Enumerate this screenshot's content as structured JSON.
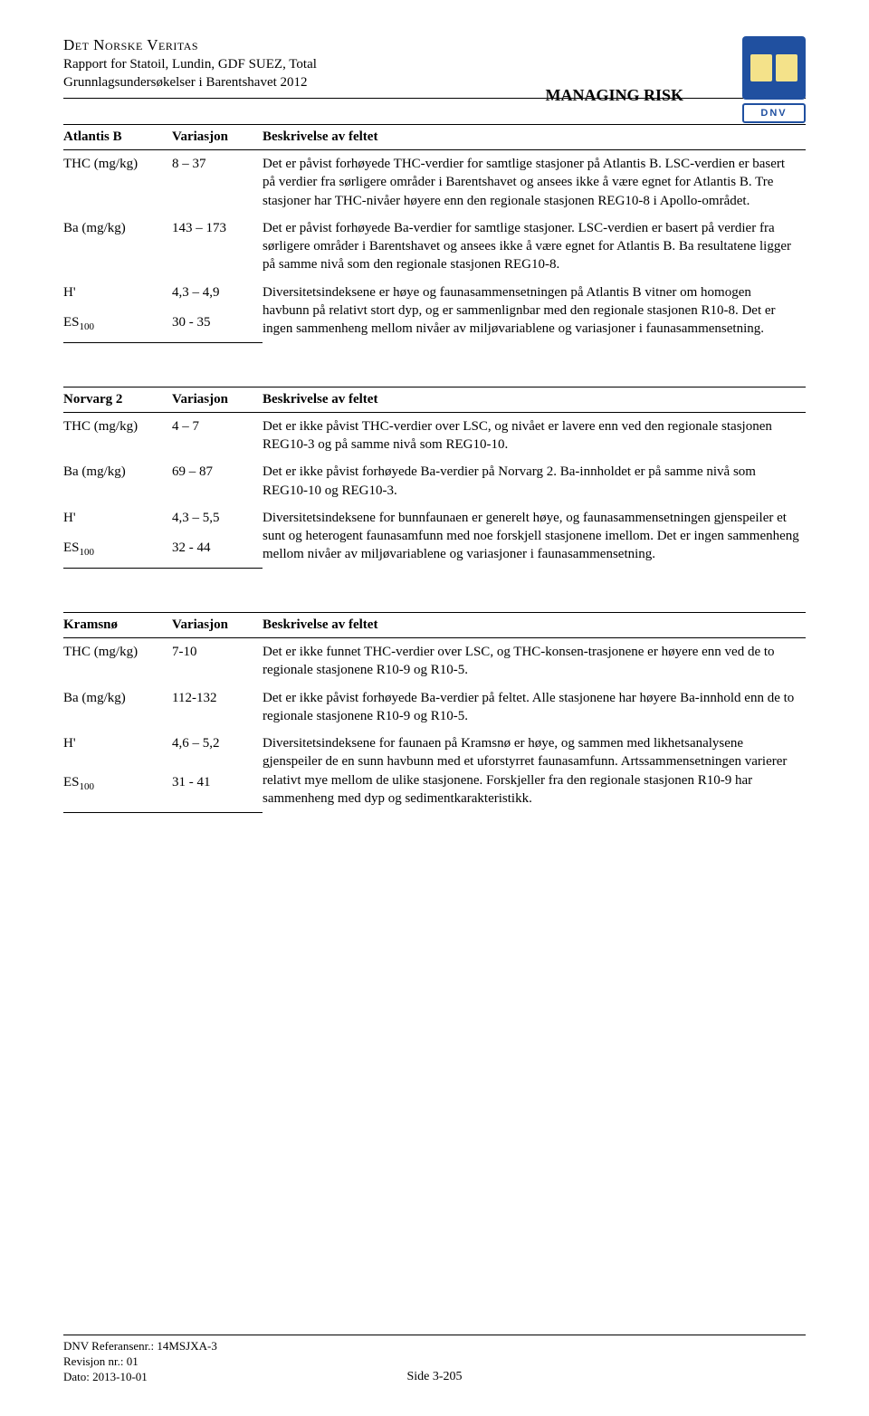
{
  "header": {
    "company": "Det Norske Veritas",
    "report_line": "Rapport for Statoil, Lundin, GDF SUEZ, Total",
    "sub_line": "Grunnlagsundersøkelser i Barentshavet 2012",
    "managing_risk": "MANAGING RISK",
    "dnv_label": "DNV"
  },
  "tables": [
    {
      "title": "Atlantis B",
      "col2": "Variasjon",
      "col3": "Beskrivelse av feltet",
      "rows": [
        {
          "label": "THC (mg/kg)",
          "var": "8 – 37",
          "desc": "Det er påvist forhøyede THC-verdier for samtlige stasjoner på Atlantis B. LSC-verdien er basert på verdier fra sørligere områder i Barentshavet og ansees ikke å være egnet for Atlantis B. Tre stasjoner har THC-nivåer høyere enn den regionale stasjonen REG10-8 i Apollo-området."
        },
        {
          "label": "Ba (mg/kg)",
          "var": "143 – 173",
          "desc": "Det er påvist forhøyede Ba-verdier for samtlige stasjoner. LSC-verdien er basert på verdier fra sørligere områder i Barentshavet og ansees ikke å være egnet for Atlantis B. Ba resultatene ligger på samme nivå som den regionale stasjonen REG10-8."
        },
        {
          "label": "H'",
          "var": "4,3 – 4,9",
          "desc": "Diversitetsindeksene er høye og faunasammensetningen på Atlantis B vitner om homogen havbunn på relativt stort dyp, og er sammenlignbar med den regionale stasjonen R10-8. Det er ingen sammenheng mellom nivåer av miljøvariablene og variasjoner i faunasammensetning.",
          "rowspan": 2
        },
        {
          "label": "ES100",
          "var": "30 - 35",
          "sub": true
        }
      ]
    },
    {
      "title": "Norvarg 2",
      "col2": "Variasjon",
      "col3": "Beskrivelse av feltet",
      "rows": [
        {
          "label": "THC (mg/kg)",
          "var": "4 – 7",
          "desc": "Det er ikke påvist THC-verdier over LSC, og nivået er lavere enn ved den regionale stasjonen REG10-3 og på samme nivå som REG10-10."
        },
        {
          "label": "Ba (mg/kg)",
          "var": "69 – 87",
          "desc": "Det er ikke påvist forhøyede Ba-verdier på Norvarg 2. Ba-innholdet er på samme nivå som REG10-10 og REG10-3."
        },
        {
          "label": "H'",
          "var": "4,3 – 5,5",
          "desc": "Diversitetsindeksene for bunnfaunaen er generelt høye, og faunasammensetningen gjenspeiler et sunt og heterogent faunasamfunn med noe forskjell stasjonene imellom. Det er ingen sammenheng mellom nivåer av miljøvariablene og variasjoner i faunasammensetning.",
          "rowspan": 2
        },
        {
          "label": "ES100",
          "var": "32 - 44",
          "sub": true
        }
      ]
    },
    {
      "title": "Kramsnø",
      "col2": "Variasjon",
      "col3": "Beskrivelse av feltet",
      "rows": [
        {
          "label": "THC (mg/kg)",
          "var": "7-10",
          "desc": "Det er ikke funnet THC-verdier over LSC, og THC-konsen-trasjonene er høyere enn ved de to regionale stasjonene R10-9 og R10-5."
        },
        {
          "label": "Ba (mg/kg)",
          "var": "112-132",
          "desc": "Det er ikke påvist forhøyede Ba-verdier på feltet. Alle stasjonene har høyere Ba-innhold enn de to regionale stasjonene R10-9 og R10-5."
        },
        {
          "label": "H'",
          "var": "4,6 – 5,2",
          "desc": "Diversitetsindeksene for faunaen på Kramsnø er høye, og sammen med likhetsanalysene gjenspeiler de en sunn havbunn med et uforstyrret faunasamfunn. Artssammensetningen varierer relativt mye mellom de ulike stasjonene. Forskjeller fra den regionale stasjonen R10-9 har sammenheng med dyp og sedimentkarakteristikk.",
          "rowspan": 2
        },
        {
          "label": "ES100",
          "var": "31 - 41",
          "sub": true
        }
      ]
    }
  ],
  "footer": {
    "ref": "DNV Referansenr.: 14MSJXA-3",
    "rev": "Revisjon nr.: 01",
    "date": "Dato: 2013-10-01",
    "page": "Side 3-205"
  }
}
